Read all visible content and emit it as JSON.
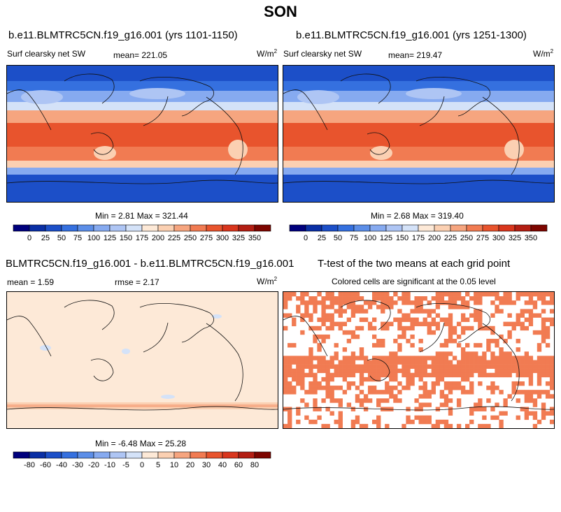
{
  "title": "SON",
  "panels": [
    {
      "id": "p1",
      "title": "b.e11.BLMTRC5CN.f19_g16.001 (yrs 1101-1150)",
      "left_label": "Surf clearsky net SW",
      "center_label": "mean= 221.05",
      "units": "W/m",
      "units_exp": "2",
      "stats": "Min =   2.81 Max = 321.44"
    },
    {
      "id": "p2",
      "title": "b.e11.BLMTRC5CN.f19_g16.001 (yrs 1251-1300)",
      "left_label": "Surf clearsky net SW",
      "center_label": "mean= 219.47",
      "units": "W/m",
      "units_exp": "2",
      "stats": "Min =   2.68 Max = 319.40"
    },
    {
      "id": "p3",
      "title": "BLMTRC5CN.f19_g16.001 - b.e11.BLMTRC5CN.f19_g16.001",
      "left_label": "mean =   1.59",
      "center_label": "rmse =   2.17",
      "units": "W/m",
      "units_exp": "2",
      "stats": "Min =  -6.48 Max =  25.28"
    },
    {
      "id": "p4",
      "title": "T-test of the two means at each grid point",
      "subtitle": "Colored cells are significant at the 0.05 level"
    }
  ],
  "colorbars": {
    "absolute": {
      "labels": [
        "0",
        "25",
        "50",
        "75",
        "100",
        "125",
        "150",
        "175",
        "200",
        "225",
        "250",
        "275",
        "300",
        "325",
        "350"
      ],
      "colors": [
        "#00007d",
        "#0a2fa5",
        "#1c4fc8",
        "#3570df",
        "#5c8ee8",
        "#86aaf0",
        "#aec5f4",
        "#d4e2f8",
        "#fde9d7",
        "#fbd0b2",
        "#f6a57f",
        "#f17b52",
        "#e8542d",
        "#d9361d",
        "#b31e13",
        "#7d0500"
      ]
    },
    "difference": {
      "labels": [
        "-80",
        "-60",
        "-40",
        "-30",
        "-20",
        "-10",
        "-5",
        "0",
        "5",
        "10",
        "20",
        "30",
        "40",
        "60",
        "80"
      ],
      "colors": [
        "#00007d",
        "#0a2fa5",
        "#1c4fc8",
        "#3570df",
        "#5c8ee8",
        "#86aaf0",
        "#aec5f4",
        "#d4e2f8",
        "#fde9d7",
        "#fbd0b2",
        "#f6a57f",
        "#f17b52",
        "#e8542d",
        "#d9361d",
        "#b31e13",
        "#7d0500"
      ]
    }
  },
  "chart_data": [
    {
      "type": "heatmap",
      "title": "b.e11.BLMTRC5CN.f19_g16.001 (yrs 1101-1150)",
      "variable": "Surf clearsky net SW",
      "units": "W/m2",
      "mean": 221.05,
      "min": 2.81,
      "max": 321.44,
      "colorbar_levels": [
        0,
        25,
        50,
        75,
        100,
        125,
        150,
        175,
        200,
        225,
        250,
        275,
        300,
        325,
        350
      ],
      "zonal_profile": {
        "latitude": [
          90,
          75,
          60,
          45,
          30,
          15,
          0,
          -15,
          -30,
          -45,
          -60,
          -75,
          -90
        ],
        "value": [
          20,
          45,
          110,
          175,
          235,
          275,
          290,
          292,
          270,
          210,
          130,
          60,
          20
        ]
      }
    },
    {
      "type": "heatmap",
      "title": "b.e11.BLMTRC5CN.f19_g16.001 (yrs 1251-1300)",
      "variable": "Surf clearsky net SW",
      "units": "W/m2",
      "mean": 219.47,
      "min": 2.68,
      "max": 319.4,
      "colorbar_levels": [
        0,
        25,
        50,
        75,
        100,
        125,
        150,
        175,
        200,
        225,
        250,
        275,
        300,
        325,
        350
      ],
      "zonal_profile": {
        "latitude": [
          90,
          75,
          60,
          45,
          30,
          15,
          0,
          -15,
          -30,
          -45,
          -60,
          -75,
          -90
        ],
        "value": [
          20,
          45,
          108,
          172,
          233,
          273,
          289,
          291,
          268,
          208,
          128,
          58,
          20
        ]
      }
    },
    {
      "type": "heatmap",
      "title": "BLMTRC5CN.f19_g16.001 - b.e11.BLMTRC5CN.f19_g16.001",
      "units": "W/m2",
      "mean": 1.59,
      "rmse": 2.17,
      "min": -6.48,
      "max": 25.28,
      "colorbar_levels": [
        -80,
        -60,
        -40,
        -30,
        -20,
        -10,
        -5,
        0,
        5,
        10,
        20,
        30,
        40,
        60,
        80
      ]
    },
    {
      "type": "heatmap",
      "title": "T-test of the two means at each grid point",
      "subtitle": "Colored cells are significant at the 0.05 level",
      "significance_level": 0.05
    }
  ]
}
